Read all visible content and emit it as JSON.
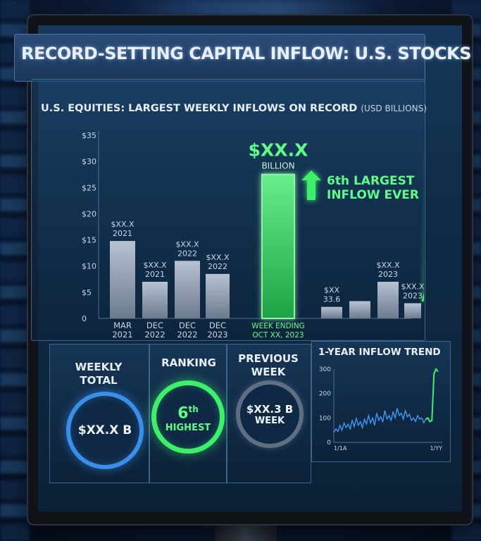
{
  "headline": "RECORD-SETTING CAPITAL INFLOW: U.S. STOCKS",
  "chart_data": [
    {
      "type": "bar",
      "title": "U.S. EQUITIES: LARGEST WEEKLY INFLOWS ON RECORD",
      "title_unit": "(USD BILLIONS)",
      "y_ticks": [
        "$35",
        "$30",
        "$25",
        "$20",
        "$15",
        "$10",
        "$5",
        "0"
      ],
      "ylim": [
        0,
        35
      ],
      "grid": false,
      "bars": [
        {
          "label": "$XX.X",
          "sub": "2021",
          "value": 14.8,
          "category": [
            "MAR",
            "2021"
          ],
          "highlight": false
        },
        {
          "label": "$XX.X",
          "sub": "2021",
          "value": 7,
          "category": [
            "DEC",
            "2022"
          ],
          "highlight": false
        },
        {
          "label": "$XX.X",
          "sub": "2022",
          "value": 11,
          "category": [
            "DEC",
            "2022"
          ],
          "highlight": false
        },
        {
          "label": "$XX.X",
          "sub": "2022",
          "value": 8.5,
          "category": [
            "DEC",
            "2023"
          ],
          "highlight": false
        },
        {
          "label": "$XX.X",
          "sub": "BILLION",
          "value": 27.5,
          "category": [
            "WEEK ENDING",
            "OCT XX, 2023"
          ],
          "highlight": true
        },
        {
          "label": "$XX",
          "sub": "33.6",
          "value": 2.2,
          "category": [],
          "highlight": false
        },
        {
          "label": "",
          "sub": "",
          "value": 3.3,
          "category": [],
          "highlight": false
        },
        {
          "label": "$XX.X",
          "sub": "2023",
          "value": 7,
          "category": [],
          "highlight": false
        },
        {
          "label": "$XX.X",
          "sub": "2023",
          "value": 2.9,
          "category": [],
          "highlight": false
        }
      ],
      "callout": [
        "6th LARGEST",
        "INFLOW EVER"
      ],
      "colors": {
        "bar": "#8f9db0",
        "highlight": "#3cf06a",
        "text": "#c9d6ea"
      }
    },
    {
      "type": "line",
      "title": "1-YEAR INFLOW TREND",
      "y_ticks": [
        "300",
        "200",
        "100",
        "0"
      ],
      "ylim": [
        0,
        300
      ],
      "x_ticks": [
        "1/1A",
        "1/YY"
      ],
      "series": [
        {
          "color": "#3aa0ff",
          "values": [
            40,
            55,
            45,
            70,
            50,
            80,
            60,
            75,
            55,
            90,
            65,
            100,
            70,
            85,
            60,
            95,
            75,
            110,
            80,
            100,
            70,
            120,
            90,
            105,
            85,
            130,
            95,
            110,
            90,
            125,
            100,
            140,
            110,
            120,
            95,
            130,
            105,
            115,
            90,
            100,
            85,
            110,
            95,
            100,
            80,
            95
          ]
        },
        {
          "color": "#3cf06a",
          "values": [
            95,
            100,
            85,
            90,
            280,
            300,
            290
          ]
        }
      ]
    }
  ],
  "tiles": {
    "weekly_total": {
      "label": [
        "WEEKLY",
        "TOTAL"
      ],
      "value": "$XX.X B"
    },
    "ranking": {
      "label": [
        "RANKING"
      ],
      "value_main": "6",
      "value_sup": "th",
      "value_sub": "HIGHEST"
    },
    "previous_week": {
      "label": [
        "PREVIOUS",
        "WEEK"
      ],
      "value_main": "$XX.3 B",
      "value_sub": "WEEK"
    }
  }
}
